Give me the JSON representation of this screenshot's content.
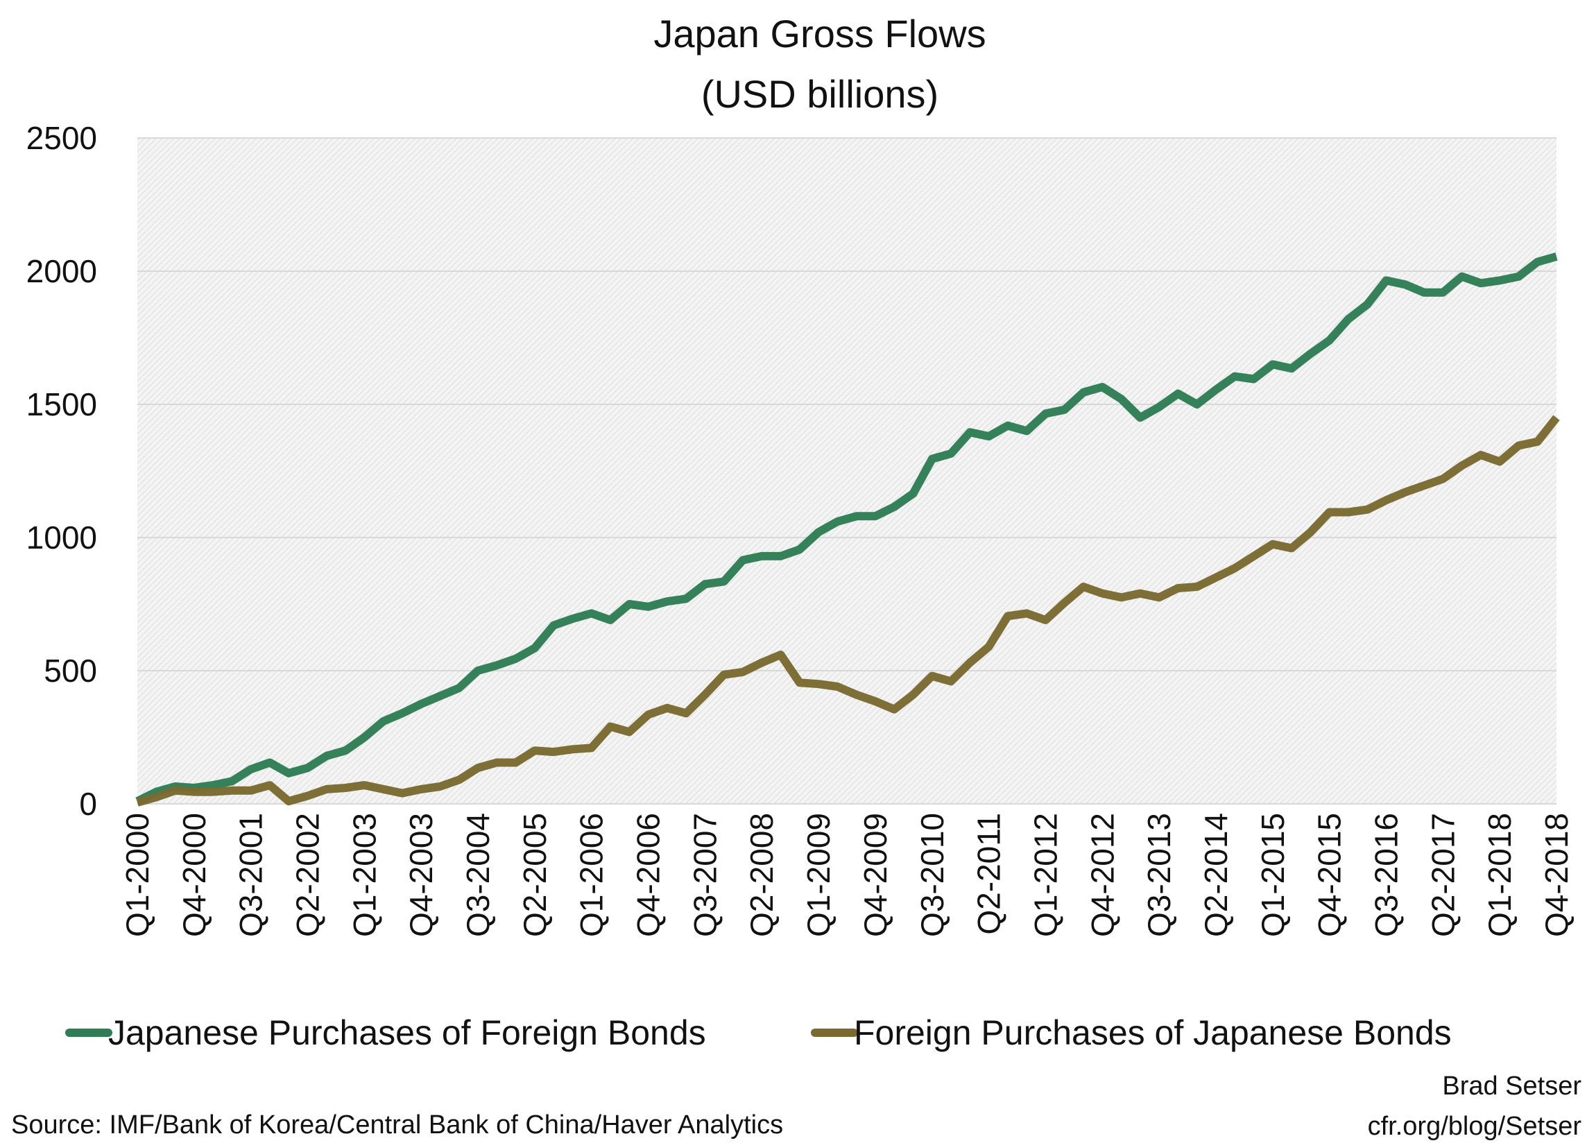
{
  "chart_data": {
    "type": "line",
    "title": "Japan Gross Flows",
    "subtitle": "(USD billions)",
    "xlabel": "",
    "ylabel": "",
    "ylim": [
      0,
      2500
    ],
    "yticks": [
      "0",
      "500",
      "1000",
      "1500",
      "2000",
      "2500"
    ],
    "grid": true,
    "legend": "bottom",
    "categories": [
      "Q1-2000",
      "Q2-2000",
      "Q3-2000",
      "Q4-2000",
      "Q1-2001",
      "Q2-2001",
      "Q3-2001",
      "Q4-2001",
      "Q1-2002",
      "Q2-2002",
      "Q3-2002",
      "Q4-2002",
      "Q1-2003",
      "Q2-2003",
      "Q3-2003",
      "Q4-2003",
      "Q1-2004",
      "Q2-2004",
      "Q3-2004",
      "Q4-2004",
      "Q1-2005",
      "Q2-2005",
      "Q3-2005",
      "Q4-2005",
      "Q1-2006",
      "Q2-2006",
      "Q3-2006",
      "Q4-2006",
      "Q1-2007",
      "Q2-2007",
      "Q3-2007",
      "Q4-2007",
      "Q1-2008",
      "Q2-2008",
      "Q3-2008",
      "Q4-2008",
      "Q1-2009",
      "Q2-2009",
      "Q3-2009",
      "Q4-2009",
      "Q1-2010",
      "Q2-2010",
      "Q3-2010",
      "Q4-2010",
      "Q1-2011",
      "Q2-2011",
      "Q3-2011",
      "Q4-2011",
      "Q1-2012",
      "Q2-2012",
      "Q3-2012",
      "Q4-2012",
      "Q1-2013",
      "Q2-2013",
      "Q3-2013",
      "Q4-2013",
      "Q1-2014",
      "Q2-2014",
      "Q3-2014",
      "Q4-2014",
      "Q1-2015",
      "Q2-2015",
      "Q3-2015",
      "Q4-2015",
      "Q1-2016",
      "Q2-2016",
      "Q3-2016",
      "Q4-2016",
      "Q1-2017",
      "Q2-2017",
      "Q3-2017",
      "Q4-2017",
      "Q1-2018",
      "Q2-2018",
      "Q3-2018",
      "Q4-2018"
    ],
    "xtick_labels": [
      "Q1-2000",
      "Q4-2000",
      "Q3-2001",
      "Q2-2002",
      "Q1-2003",
      "Q4-2003",
      "Q3-2004",
      "Q2-2005",
      "Q1-2006",
      "Q4-2006",
      "Q3-2007",
      "Q2-2008",
      "Q1-2009",
      "Q4-2009",
      "Q3-2010",
      "Q2-2011",
      "Q1-2012",
      "Q4-2012",
      "Q3-2013",
      "Q2-2014",
      "Q1-2015",
      "Q4-2015",
      "Q3-2016",
      "Q2-2017",
      "Q1-2018",
      "Q4-2018"
    ],
    "series": [
      {
        "name": "Japanese Purchases of Foreign Bonds",
        "color": "#2e7d55",
        "values": [
          10,
          45,
          65,
          60,
          70,
          85,
          130,
          155,
          115,
          135,
          180,
          200,
          250,
          310,
          340,
          375,
          405,
          435,
          500,
          520,
          545,
          585,
          670,
          695,
          715,
          690,
          750,
          740,
          760,
          770,
          825,
          835,
          915,
          930,
          930,
          955,
          1020,
          1060,
          1080,
          1080,
          1115,
          1165,
          1295,
          1315,
          1395,
          1380,
          1420,
          1400,
          1465,
          1480,
          1545,
          1565,
          1520,
          1450,
          1490,
          1540,
          1500,
          1555,
          1605,
          1595,
          1650,
          1635,
          1690,
          1740,
          1820,
          1875,
          1965,
          1950,
          1920,
          1920,
          1980,
          1955,
          1965,
          1980,
          2035,
          2055
        ]
      },
      {
        "name": "Foreign Purchases of Japanese Bonds",
        "color": "#7a6a30",
        "values": [
          5,
          25,
          50,
          45,
          45,
          50,
          50,
          70,
          10,
          30,
          55,
          60,
          70,
          55,
          40,
          55,
          65,
          90,
          135,
          155,
          155,
          200,
          195,
          205,
          210,
          290,
          270,
          335,
          360,
          340,
          410,
          485,
          495,
          530,
          560,
          455,
          450,
          440,
          410,
          385,
          355,
          410,
          480,
          460,
          530,
          590,
          705,
          715,
          690,
          755,
          815,
          790,
          775,
          790,
          775,
          810,
          815,
          850,
          885,
          930,
          975,
          960,
          1020,
          1095,
          1095,
          1105,
          1140,
          1170,
          1195,
          1220,
          1270,
          1310,
          1285,
          1345,
          1360,
          1450
        ]
      }
    ]
  },
  "source": "Source: IMF/Bank of Korea/Central Bank of China/Haver Analytics",
  "credit": {
    "author": "Brad Setser",
    "site": "cfr.org/blog/Setser"
  }
}
